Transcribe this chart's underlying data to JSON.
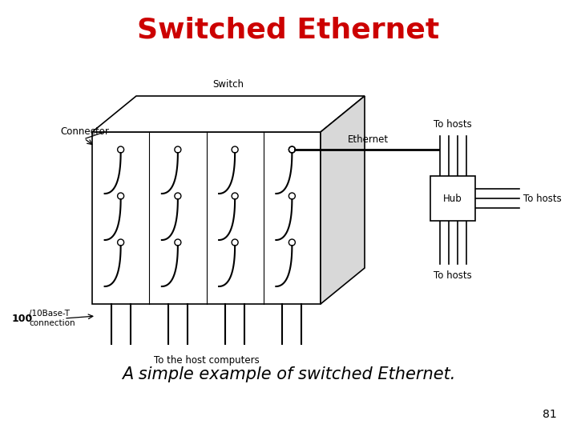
{
  "title": "Switched Ethernet",
  "title_color": "#cc0000",
  "title_fontsize": 26,
  "subtitle": "A simple example of switched Ethernet.",
  "subtitle_fontsize": 15,
  "page_number": "81",
  "bg_color": "#ffffff",
  "fg_color": "#000000",
  "switch_label": "Switch",
  "connector_label": "Connector",
  "host_label": "To the host computers",
  "ethernet_label": "Ethernet",
  "hub_label": "Hub",
  "to_hosts_label": "To hosts"
}
